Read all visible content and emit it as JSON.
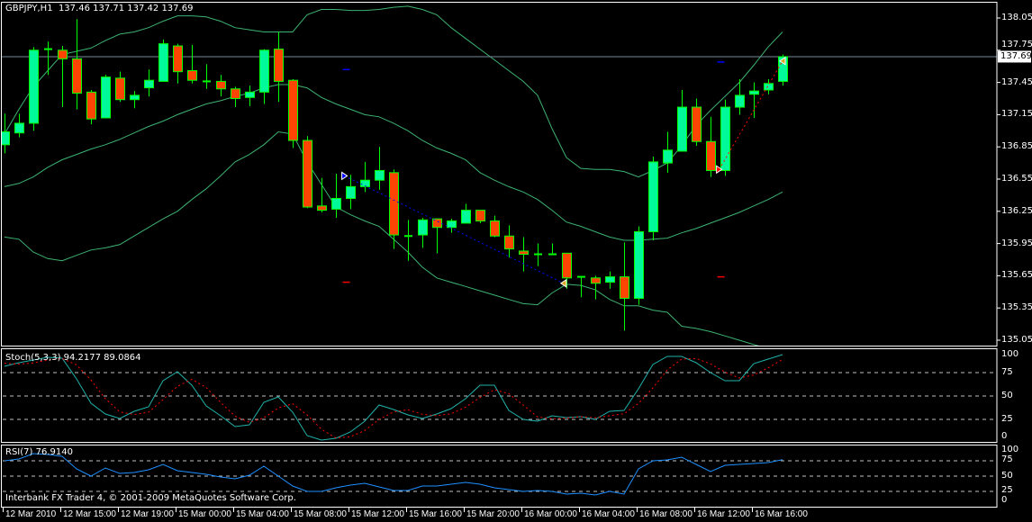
{
  "header": {
    "symbol_label": "GBPJPY,H1",
    "ohlc_text": "137.46 137.71 137.42 137.69"
  },
  "stoch_panel": {
    "label": "Stoch(5,3,3) 94.2177 89.0864"
  },
  "rsi_panel": {
    "label": "RSI(7) 76.9140"
  },
  "footer": {
    "copyright": "Interbank FX Trader 4, © 2001-2009 MetaQuotes Software Corp."
  },
  "colors": {
    "background": "#000000",
    "frame": "#FFFFFF",
    "bull_body": "#00FA9A",
    "bear_body": "#FF4500",
    "wick": "#00FF00",
    "bollinger": "#3CB371",
    "price_line": "#778899",
    "stoch_main": "#20B2AA",
    "stoch_signal": "#FF0000",
    "rsi": "#1E90FF",
    "level_lines": "#C0C0C0",
    "buy_marker": "#0000FF",
    "sell_marker": "#FF0000",
    "close_marker": "#DAA520"
  },
  "chart_data": [
    {
      "type": "candlestick",
      "title": "GBPJPY,H1",
      "price_axis": {
        "ticks": [
          "138.05",
          "137.75",
          "137.45",
          "137.15",
          "136.85",
          "136.55",
          "136.25",
          "135.95",
          "135.65",
          "135.35",
          "135.05"
        ],
        "range": [
          135.05,
          138.05
        ]
      },
      "current_price": "137.69",
      "time_axis": {
        "labels": [
          "12 Mar 2010",
          "12 Mar 15:00",
          "12 Mar 19:00",
          "15 Mar 00:00",
          "15 Mar 04:00",
          "15 Mar 08:00",
          "15 Mar 12:00",
          "15 Mar 16:00",
          "15 Mar 20:00",
          "16 Mar 00:00",
          "16 Mar 04:00",
          "16 Mar 08:00",
          "16 Mar 12:00",
          "16 Mar 16:00"
        ],
        "bars_per_label": 4
      },
      "ohlc": [
        [
          136.87,
          137.16,
          136.79,
          136.99
        ],
        [
          136.98,
          137.16,
          136.94,
          137.07
        ],
        [
          137.07,
          137.78,
          137.0,
          137.75
        ],
        [
          137.76,
          137.83,
          137.52,
          137.76
        ],
        [
          137.75,
          137.79,
          137.22,
          137.67
        ],
        [
          137.67,
          138.04,
          137.2,
          137.35
        ],
        [
          137.36,
          137.38,
          137.06,
          137.11
        ],
        [
          137.12,
          137.52,
          137.12,
          137.5
        ],
        [
          137.49,
          137.55,
          137.27,
          137.29
        ],
        [
          137.29,
          137.37,
          137.21,
          137.33
        ],
        [
          137.4,
          137.57,
          137.32,
          137.47
        ],
        [
          137.46,
          137.85,
          137.46,
          137.81
        ],
        [
          137.79,
          137.81,
          137.44,
          137.55
        ],
        [
          137.56,
          137.8,
          137.44,
          137.47
        ],
        [
          137.46,
          137.62,
          137.39,
          137.46
        ],
        [
          137.46,
          137.52,
          137.32,
          137.39
        ],
        [
          137.39,
          137.41,
          137.22,
          137.3
        ],
        [
          137.31,
          137.42,
          137.23,
          137.36
        ],
        [
          137.36,
          137.76,
          137.25,
          137.75
        ],
        [
          137.76,
          137.92,
          137.27,
          137.46
        ],
        [
          137.47,
          137.48,
          136.84,
          136.91
        ],
        [
          136.91,
          136.95,
          136.28,
          136.29
        ],
        [
          136.3,
          136.56,
          136.24,
          136.26
        ],
        [
          136.27,
          136.6,
          136.19,
          136.37
        ],
        [
          136.37,
          136.59,
          136.27,
          136.48
        ],
        [
          136.48,
          136.71,
          136.43,
          136.54
        ],
        [
          136.54,
          136.85,
          136.45,
          136.63
        ],
        [
          136.61,
          136.64,
          135.9,
          136.03
        ],
        [
          136.02,
          136.17,
          135.79,
          136.02
        ],
        [
          136.03,
          136.19,
          135.91,
          136.17
        ],
        [
          136.18,
          136.18,
          135.86,
          136.1
        ],
        [
          136.1,
          136.18,
          136.05,
          136.16
        ],
        [
          136.14,
          136.32,
          136.14,
          136.26
        ],
        [
          136.26,
          136.26,
          136.14,
          136.16
        ],
        [
          136.16,
          136.21,
          136.01,
          136.02
        ],
        [
          136.02,
          136.12,
          135.82,
          135.9
        ],
        [
          135.88,
          136.01,
          135.69,
          135.85
        ],
        [
          135.85,
          135.95,
          135.74,
          135.85
        ],
        [
          135.85,
          135.95,
          135.85,
          135.85
        ],
        [
          135.86,
          135.86,
          135.53,
          135.63
        ],
        [
          135.64,
          135.64,
          135.45,
          135.64
        ],
        [
          135.63,
          135.65,
          135.43,
          135.58
        ],
        [
          135.59,
          135.69,
          135.53,
          135.64
        ],
        [
          135.64,
          135.96,
          135.14,
          135.44
        ],
        [
          135.44,
          136.11,
          135.38,
          136.06
        ],
        [
          136.06,
          136.76,
          135.98,
          136.71
        ],
        [
          136.7,
          136.99,
          136.61,
          136.82
        ],
        [
          136.81,
          137.38,
          136.81,
          137.22
        ],
        [
          137.22,
          137.3,
          136.86,
          136.9
        ],
        [
          136.9,
          137.13,
          136.57,
          136.63
        ],
        [
          136.63,
          137.29,
          136.58,
          137.22
        ],
        [
          137.22,
          137.48,
          137.15,
          137.33
        ],
        [
          137.34,
          137.45,
          137.12,
          137.37
        ],
        [
          137.38,
          137.48,
          137.34,
          137.44
        ],
        [
          137.46,
          137.71,
          137.42,
          137.69
        ]
      ],
      "bollinger": {
        "upper": [
          136.97,
          137.2,
          137.41,
          137.56,
          137.71,
          137.74,
          137.77,
          137.84,
          137.9,
          137.92,
          137.96,
          138.02,
          138.07,
          138.07,
          138.06,
          138.02,
          137.96,
          137.94,
          137.92,
          137.92,
          137.92,
          138.08,
          138.13,
          138.13,
          138.12,
          138.12,
          138.13,
          138.15,
          138.16,
          138.13,
          138.08,
          137.96,
          137.86,
          137.76,
          137.66,
          137.56,
          137.46,
          137.33,
          137.02,
          136.75,
          136.65,
          136.64,
          136.64,
          136.62,
          136.57,
          136.63,
          136.7,
          136.86,
          137.05,
          137.19,
          137.32,
          137.45,
          137.61,
          137.78,
          137.92
        ],
        "middle": [
          136.48,
          136.51,
          136.57,
          136.66,
          136.73,
          136.78,
          136.83,
          136.87,
          136.92,
          136.98,
          137.04,
          137.09,
          137.15,
          137.2,
          137.25,
          137.28,
          137.32,
          137.35,
          137.4,
          137.43,
          137.43,
          137.4,
          137.31,
          137.25,
          137.2,
          137.15,
          137.13,
          137.07,
          137.0,
          136.91,
          136.84,
          136.79,
          136.73,
          136.61,
          136.54,
          136.48,
          136.43,
          136.36,
          136.26,
          136.15,
          136.11,
          136.06,
          136.01,
          135.98,
          135.98,
          135.99,
          136.0,
          136.05,
          136.09,
          136.14,
          136.19,
          136.24,
          136.3,
          136.36,
          136.43
        ],
        "lower": [
          136.01,
          135.99,
          135.87,
          135.81,
          135.79,
          135.84,
          135.89,
          135.91,
          135.94,
          136.02,
          136.1,
          136.18,
          136.25,
          136.36,
          136.46,
          136.58,
          136.71,
          136.78,
          136.87,
          136.99,
          136.97,
          136.71,
          136.5,
          136.29,
          136.22,
          136.16,
          136.11,
          135.99,
          135.87,
          135.73,
          135.63,
          135.59,
          135.55,
          135.51,
          135.47,
          135.43,
          135.39,
          135.38,
          135.49,
          135.57,
          135.56,
          135.52,
          135.43,
          135.37,
          135.37,
          135.33,
          135.31,
          135.18,
          135.16,
          135.13,
          135.09,
          135.05,
          135.01,
          134.97,
          134.92
        ]
      },
      "trades": [
        {
          "type": "buy",
          "open_bar": 23.6,
          "open_price": 136.58,
          "close_bar": 38.8,
          "close_price": 135.58,
          "stop_level": 135.59,
          "target_level": 137.57
        },
        {
          "type": "sell",
          "open_bar": 49.6,
          "open_price": 136.64,
          "close_bar": 54,
          "close_price": 137.65,
          "stop_level": 137.64,
          "target_level": 135.64
        }
      ]
    },
    {
      "type": "line",
      "title": "Stoch(5,3,3)",
      "ylim": [
        0,
        100
      ],
      "levels": [
        75,
        50,
        25
      ],
      "y_ticks": [
        "100",
        "75",
        "50",
        "25",
        "0"
      ],
      "series": [
        {
          "name": "main",
          "values": [
            81.7,
            85.6,
            88.5,
            91.3,
            90.4,
            68.3,
            42.3,
            30.8,
            26.0,
            33.7,
            38.5,
            66.3,
            76.0,
            61.5,
            39.4,
            28.8,
            17.3,
            19.2,
            43.3,
            49.0,
            32.7,
            7.7,
            2.9,
            4.8,
            11.5,
            23.1,
            40.4,
            35.6,
            29.8,
            26.0,
            30.8,
            36.5,
            47.1,
            61.5,
            61.5,
            34.6,
            25.0,
            23.1,
            28.8,
            26.9,
            27.9,
            25.0,
            33.7,
            34.6,
            57.7,
            83.7,
            92.3,
            92.3,
            85.6,
            75.0,
            66.3,
            66.3,
            84.6,
            89.4,
            94.2177
          ]
        },
        {
          "name": "signal",
          "values": [
            85.0,
            84.0,
            85.3,
            88.5,
            90.1,
            83.3,
            67.0,
            47.1,
            33.0,
            30.2,
            32.7,
            46.2,
            60.3,
            67.9,
            59.0,
            43.2,
            28.5,
            21.8,
            26.6,
            37.2,
            41.7,
            29.8,
            14.4,
            5.1,
            6.4,
            13.1,
            25.0,
            33.0,
            35.3,
            30.5,
            28.9,
            31.1,
            38.1,
            48.4,
            56.7,
            52.5,
            40.4,
            27.6,
            25.6,
            26.3,
            27.9,
            26.6,
            28.9,
            31.1,
            42.0,
            58.7,
            77.9,
            89.4,
            90.1,
            84.3,
            75.6,
            69.2,
            72.4,
            80.1,
            89.0864
          ]
        }
      ]
    },
    {
      "type": "line",
      "title": "RSI(7)",
      "ylim": [
        0,
        100
      ],
      "levels": [
        75,
        50,
        25
      ],
      "y_ticks": [
        "100",
        "75",
        "50",
        "25",
        "0"
      ],
      "series": [
        {
          "name": "RSI",
          "values": [
            75.0,
            77.9,
            86.8,
            85.3,
            82.4,
            61.8,
            50.0,
            63.2,
            54.4,
            55.9,
            60.3,
            69.1,
            58.8,
            55.9,
            52.9,
            48.5,
            45.6,
            51.5,
            66.2,
            50.0,
            33.8,
            25.0,
            25.0,
            30.9,
            35.3,
            38.2,
            32.4,
            26.5,
            26.5,
            33.8,
            33.8,
            36.8,
            39.7,
            36.8,
            30.9,
            27.9,
            25.0,
            26.5,
            25.0,
            20.6,
            22.1,
            19.1,
            25.0,
            20.6,
            61.8,
            75.0,
            76.5,
            80.9,
            69.1,
            57.4,
            67.6,
            69.1,
            70.6,
            72.1,
            76.914
          ]
        }
      ]
    }
  ]
}
